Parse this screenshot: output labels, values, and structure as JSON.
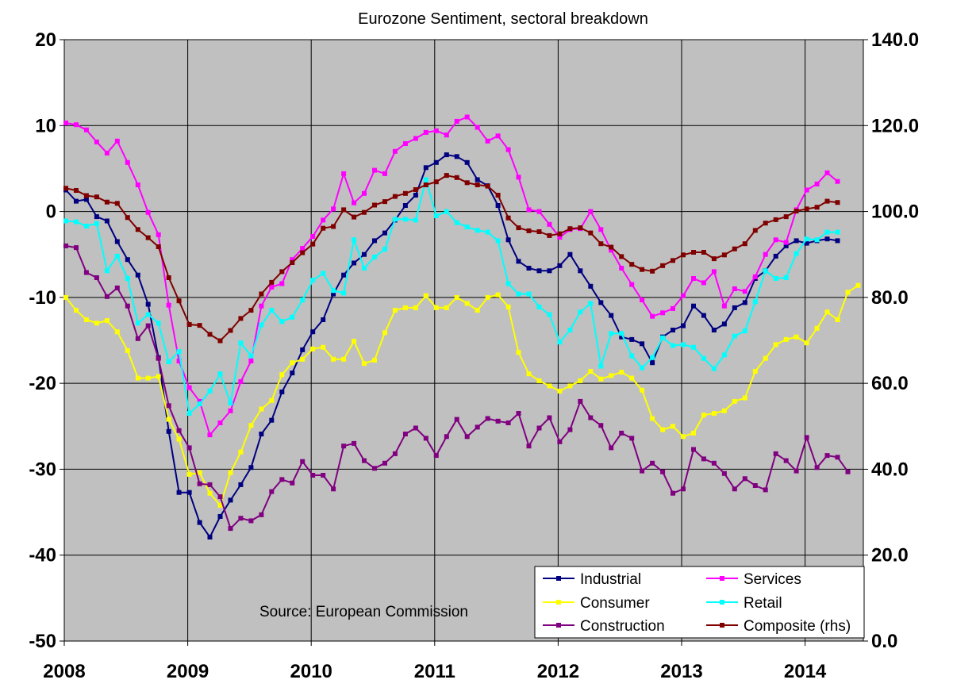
{
  "chart_data": {
    "type": "line",
    "title": "Eurozone Sentiment, sectoral breakdown",
    "source_note": "Source: European Commission",
    "x_start": "2008-01",
    "x_end": "2014-07",
    "x_ticks": [
      "2008",
      "2009",
      "2010",
      "2011",
      "2012",
      "2013",
      "2014"
    ],
    "y_left": {
      "min": -50,
      "max": 20,
      "ticks": [
        "20",
        "10",
        "0",
        "-10",
        "-20",
        "-30",
        "-40",
        "-50"
      ]
    },
    "y_right": {
      "min": 0,
      "max": 140,
      "ticks": [
        "140.0",
        "120.0",
        "100.0",
        "80.0",
        "60.0",
        "40.0",
        "20.0",
        "0.0"
      ]
    },
    "grid": true,
    "legend": {
      "placement": "bottom-right"
    },
    "series": [
      {
        "name": "Industrial",
        "color": "#000080",
        "axis": "left",
        "values": [
          2.5,
          1.2,
          1.4,
          -0.6,
          -1.1,
          -3.5,
          -5.6,
          -7.4,
          -10.8,
          -17,
          -25.6,
          -32.7,
          -32.7,
          -36.2,
          -37.9,
          -35.5,
          -33.6,
          -31.8,
          -29.8,
          -25.9,
          -24.3,
          -21,
          -18.8,
          -16.1,
          -14,
          -12.6,
          -9.6,
          -7.4,
          -6,
          -5,
          -3.4,
          -2.5,
          -1,
          0.7,
          1.9,
          5.1,
          5.7,
          6.6,
          6.4,
          5.7,
          3.7,
          3,
          0.7,
          -3.3,
          -5.8,
          -6.6,
          -6.9,
          -6.9,
          -6.3,
          -5,
          -6.9,
          -8.7,
          -10.6,
          -12.1,
          -14.6,
          -14.9,
          -15.4,
          -17.6,
          -14.6,
          -13.8,
          -13.3,
          -11,
          -12.1,
          -13.8,
          -13.1,
          -11.2,
          -10.6,
          -7.8,
          -6.9,
          -5.2,
          -4,
          -3.4,
          -3.7,
          -3.4,
          -3.2,
          -3.4
        ]
      },
      {
        "name": "Services",
        "color": "#ff00ff",
        "axis": "left",
        "values": [
          10.3,
          10.1,
          9.5,
          8.1,
          6.8,
          8.2,
          5.7,
          3.1,
          -0.1,
          -2.7,
          -10.9,
          -17.4,
          -20.5,
          -22.1,
          -26,
          -24.6,
          -23.2,
          -19.8,
          -17.4,
          -11,
          -8.8,
          -8.4,
          -5.6,
          -4.3,
          -2.9,
          -1,
          0.3,
          4.4,
          1,
          2.1,
          4.8,
          4.4,
          7,
          7.9,
          8.5,
          9.2,
          9.4,
          8.9,
          10.5,
          11,
          9.8,
          8.2,
          8.8,
          7.2,
          4,
          0.2,
          0,
          -1.5,
          -3,
          -2.1,
          -2,
          0,
          -2.1,
          -4.5,
          -6.6,
          -8.5,
          -10.3,
          -12.2,
          -11.8,
          -11.3,
          -9.8,
          -7.8,
          -8.3,
          -7,
          -11,
          -9,
          -9.3,
          -7.6,
          -5,
          -3.3,
          -3.6,
          0.2,
          2.5,
          3.2,
          4.5,
          3.5
        ]
      },
      {
        "name": "Consumer",
        "color": "#ffff00",
        "axis": "left",
        "values": [
          -10,
          -11.5,
          -12.6,
          -13,
          -12.7,
          -14,
          -16.2,
          -19.4,
          -19.4,
          -19.2,
          -24.2,
          -26.5,
          -30.6,
          -30.4,
          -32.8,
          -34.2,
          -30.4,
          -28,
          -24.9,
          -23,
          -22,
          -19,
          -17.6,
          -17.2,
          -16,
          -15.8,
          -17.2,
          -17.2,
          -15.1,
          -17.7,
          -17.3,
          -14.1,
          -11.5,
          -11.2,
          -11.2,
          -9.8,
          -11.2,
          -11.2,
          -10,
          -10.7,
          -11.5,
          -10,
          -9.7,
          -11.1,
          -16.4,
          -18.9,
          -19.7,
          -20.3,
          -20.9,
          -20.3,
          -19.7,
          -18.6,
          -19.5,
          -19.1,
          -18.7,
          -19.4,
          -20.8,
          -24.1,
          -25.4,
          -25,
          -26.2,
          -25.8,
          -23.7,
          -23.5,
          -23.2,
          -22.1,
          -21.7,
          -18.6,
          -17.1,
          -15.5,
          -14.9,
          -14.6,
          -15.3,
          -13.6,
          -11.7,
          -12.6,
          -9.4,
          -8.6
        ]
      },
      {
        "name": "Retail",
        "color": "#00ffff",
        "axis": "left",
        "values": [
          -1.1,
          -1.2,
          -1.7,
          -1.4,
          -6.9,
          -5.2,
          -7.8,
          -13,
          -12,
          -13,
          -17.5,
          -16.3,
          -23.5,
          -22.4,
          -20.9,
          -18.9,
          -22.3,
          -15.3,
          -16.8,
          -13.2,
          -11.5,
          -12.8,
          -12.3,
          -10.3,
          -8,
          -7.2,
          -9.2,
          -9.5,
          -3.3,
          -6.6,
          -5.3,
          -4.4,
          -0.9,
          -0.9,
          -1,
          3.7,
          -0.5,
          0,
          -1.3,
          -1.8,
          -2.2,
          -2.4,
          -3.4,
          -8.4,
          -9.6,
          -9.6,
          -11.1,
          -12,
          -15.2,
          -13.8,
          -11.7,
          -10.7,
          -18,
          -14.2,
          -14.2,
          -16.8,
          -18.2,
          -17,
          -14.7,
          -15.6,
          -15.5,
          -15.8,
          -17.1,
          -18.3,
          -16.7,
          -14.5,
          -13.9,
          -10.5,
          -6.9,
          -7.8,
          -7.7,
          -4.9,
          -3.2,
          -3.3,
          -2.4,
          -2.4
        ]
      },
      {
        "name": "Construction",
        "color": "#800080",
        "axis": "left",
        "values": [
          -4,
          -4.2,
          -7.1,
          -7.7,
          -9.9,
          -8.9,
          -11,
          -14.8,
          -13.3,
          -17.1,
          -22.6,
          -25.5,
          -27.5,
          -31.7,
          -31.8,
          -33.2,
          -36.9,
          -35.7,
          -36,
          -35.3,
          -32.6,
          -31.2,
          -31.6,
          -29.1,
          -30.7,
          -30.7,
          -32.3,
          -27.3,
          -27,
          -29,
          -29.9,
          -29.3,
          -28.2,
          -25.9,
          -25.2,
          -26.4,
          -28.4,
          -26.2,
          -24.2,
          -26.2,
          -25.1,
          -24.1,
          -24.4,
          -24.6,
          -23.5,
          -27.3,
          -25.2,
          -24,
          -26.8,
          -25.4,
          -22.1,
          -24,
          -24.9,
          -27.5,
          -25.8,
          -26.4,
          -30.2,
          -29.3,
          -30.3,
          -32.8,
          -32.3,
          -27.7,
          -28.8,
          -29.3,
          -30.5,
          -32.3,
          -31.1,
          -31.9,
          -32.4,
          -28.2,
          -29,
          -30.2,
          -26.3,
          -29.8,
          -28.4,
          -28.6,
          -30.3
        ]
      },
      {
        "name": "Composite (rhs)",
        "color": "#800000",
        "axis": "right",
        "values": [
          105.4,
          104.9,
          103.7,
          103.4,
          102.2,
          101.9,
          98.6,
          95.8,
          93.9,
          91.8,
          84.6,
          79.2,
          73.7,
          73.5,
          71.4,
          69.9,
          72.3,
          75.1,
          77,
          80.8,
          83.5,
          86,
          88.1,
          90.4,
          92.4,
          96.1,
          96.5,
          100.4,
          98.7,
          99.8,
          101.5,
          102.3,
          103.5,
          104.2,
          105.1,
          106.2,
          106.9,
          108.4,
          107.9,
          106.7,
          106.2,
          105.9,
          103.8,
          98.5,
          96.2,
          95.5,
          95.3,
          94.4,
          94.8,
          96,
          96.2,
          95,
          92.5,
          91.7,
          89.5,
          87.7,
          86.5,
          86.1,
          87.4,
          88.6,
          89.9,
          90.5,
          90.5,
          89,
          89.9,
          91.3,
          92.5,
          95.6,
          97.3,
          98.1,
          98.8,
          100.1,
          100.6,
          101,
          102.4,
          102.1
        ]
      }
    ]
  }
}
